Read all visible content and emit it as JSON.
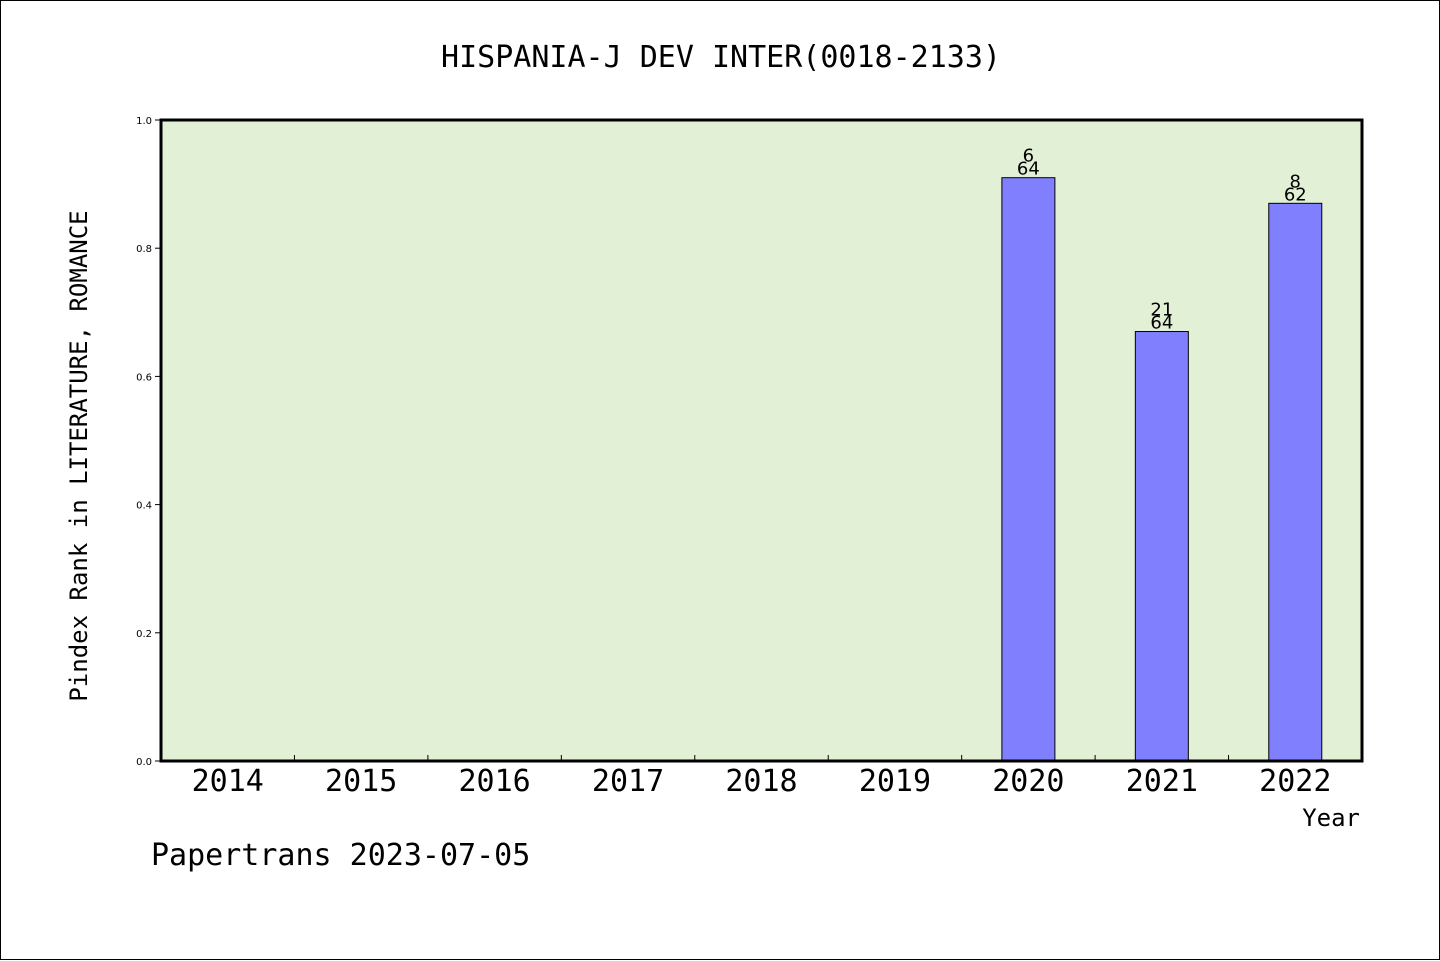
{
  "chart_data": {
    "type": "bar",
    "title": "HISPANIA-J DEV INTER(0018-2133)",
    "xlabel": "Year",
    "ylabel": "Pindex Rank in LITERATURE, ROMANCE",
    "categories": [
      "2014",
      "2015",
      "2016",
      "2017",
      "2018",
      "2019",
      "2020",
      "2021",
      "2022"
    ],
    "values": [
      null,
      null,
      null,
      null,
      null,
      null,
      0.91,
      0.67,
      0.87
    ],
    "bar_labels": [
      null,
      null,
      null,
      null,
      null,
      null,
      {
        "rank": "6",
        "total": "64"
      },
      {
        "rank": "21",
        "total": "64"
      },
      {
        "rank": "8",
        "total": "62"
      }
    ],
    "yticks": [
      "0.0",
      "0.2",
      "0.4",
      "0.6",
      "0.8",
      "1.0"
    ],
    "ylim": [
      0,
      1.0
    ],
    "grid": false,
    "plot_background": "#e2f0d6",
    "bar_color": "#8080ff",
    "footer": "Papertrans 2023-07-05"
  }
}
